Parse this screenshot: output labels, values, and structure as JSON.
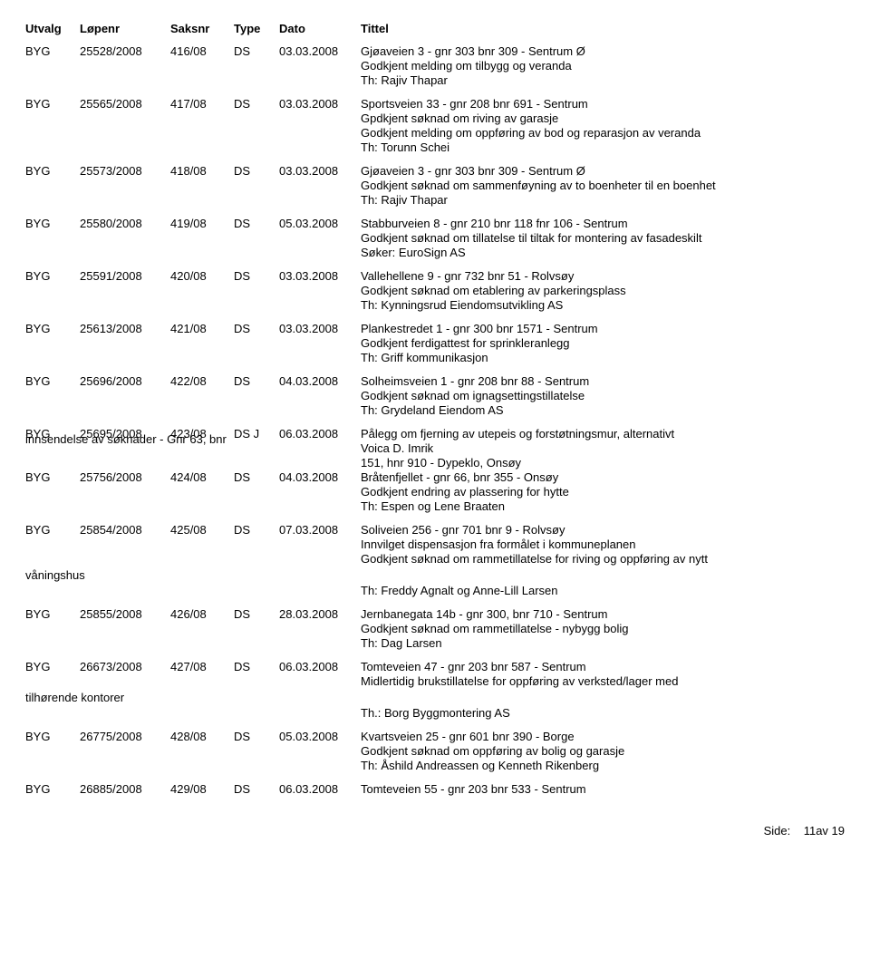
{
  "headers": {
    "utvalg": "Utvalg",
    "lopenr": "Løpenr",
    "saksnr": "Saksnr",
    "type": "Type",
    "dato": "Dato",
    "tittel": "Tittel"
  },
  "rows": [
    {
      "utvalg": "BYG",
      "lopenr": "25528/2008",
      "saksnr": "416/08",
      "type": "DS",
      "dato": "03.03.2008",
      "title": "Gjøaveien 3 - gnr 303 bnr 309 - Sentrum Ø",
      "subs": [
        "Godkjent melding om tilbygg og veranda",
        "Th: Rajiv Thapar"
      ]
    },
    {
      "utvalg": "BYG",
      "lopenr": "25565/2008",
      "saksnr": "417/08",
      "type": "DS",
      "dato": "03.03.2008",
      "title": "Sportsveien 33 - gnr 208 bnr 691 - Sentrum",
      "subs": [
        "Gpdkjent søknad om riving av garasje",
        "Godkjent melding om oppføring av bod og reparasjon av veranda",
        "Th: Torunn Schei"
      ]
    },
    {
      "utvalg": "BYG",
      "lopenr": "25573/2008",
      "saksnr": "418/08",
      "type": "DS",
      "dato": "03.03.2008",
      "title": "Gjøaveien 3 - gnr 303 bnr 309 -  Sentrum Ø",
      "subs": [
        "Godkjent søknad om sammenføyning av to boenheter til en boenhet",
        "Th: Rajiv Thapar"
      ]
    },
    {
      "utvalg": "BYG",
      "lopenr": "25580/2008",
      "saksnr": "419/08",
      "type": "DS",
      "dato": "05.03.2008",
      "title": "Stabburveien 8 - gnr 210 bnr 118 fnr 106 - Sentrum",
      "subs": [
        "Godkjent søknad om tillatelse til tiltak for montering av fasadeskilt",
        "Søker: EuroSign AS"
      ]
    },
    {
      "utvalg": "BYG",
      "lopenr": "25591/2008",
      "saksnr": "420/08",
      "type": "DS",
      "dato": "03.03.2008",
      "title": "Vallehellene 9 - gnr 732 bnr 51 -  Rolvsøy",
      "subs": [
        "Godkjent søknad om etablering av parkeringsplass",
        "Th: Kynningsrud Eiendomsutvikling AS"
      ]
    },
    {
      "utvalg": "BYG",
      "lopenr": "25613/2008",
      "saksnr": "421/08",
      "type": "DS",
      "dato": "03.03.2008",
      "title": "Plankestredet 1 - gnr 300 bnr 1571 - Sentrum",
      "subs": [
        "Godkjent ferdigattest for sprinkleranlegg",
        "Th: Griff kommunikasjon"
      ]
    },
    {
      "utvalg": "BYG",
      "lopenr": "25696/2008",
      "saksnr": "422/08",
      "type": "DS",
      "dato": "04.03.2008",
      "title": "Solheimsveien 1 - gnr 208 bnr 88 - Sentrum",
      "subs": [
        "Godkjent søknad om ignagsettingstillatelse",
        "Th: Grydeland Eiendom AS"
      ]
    },
    {
      "utvalg": "BYG",
      "lopenr": "25695/2008",
      "saksnr": "423/08",
      "type": "DS J",
      "dato": "06.03.2008",
      "title": "Pålegg om fjerning av utepeis og forstøtningsmur, alternativt",
      "subs": [
        "Voica D. Imrik",
        "151, hnr 910 - Dypeklo, Onsøy"
      ],
      "left_note": "innsendelse av søknader - Gnr 63, bnr"
    },
    {
      "utvalg": "BYG",
      "lopenr": "25756/2008",
      "saksnr": "424/08",
      "type": "DS",
      "dato": "04.03.2008",
      "title": "Bråtenfjellet - gnr 66, bnr 355 - Onsøy",
      "subs": [
        "Godkjent endring av plassering for hytte",
        "Th: Espen og Lene Braaten"
      ]
    },
    {
      "utvalg": "BYG",
      "lopenr": "25854/2008",
      "saksnr": "425/08",
      "type": "DS",
      "dato": "07.03.2008",
      "title": "Soliveien 256 - gnr 701 bnr 9 - Rolvsøy",
      "subs": [
        "Innvilget dispensasjon fra formålet i kommuneplanen",
        "Godkjent søknad om rammetillatelse for riving og oppføring av nytt"
      ],
      "left_note_after": "våningshus",
      "subs_after": [
        "Th: Freddy Agnalt og Anne-Lill Larsen"
      ]
    },
    {
      "utvalg": "BYG",
      "lopenr": "25855/2008",
      "saksnr": "426/08",
      "type": "DS",
      "dato": "28.03.2008",
      "title": "Jernbanegata 14b - gnr 300, bnr 710 - Sentrum",
      "subs": [
        "Godkjent søknad om rammetillatelse - nybygg bolig",
        "Th: Dag Larsen"
      ]
    },
    {
      "utvalg": "BYG",
      "lopenr": "26673/2008",
      "saksnr": "427/08",
      "type": "DS",
      "dato": "06.03.2008",
      "title": "Tomteveien 47 - gnr 203 bnr 587 - Sentrum",
      "subs": [
        "Midlertidig brukstillatelse for oppføring av verksted/lager med"
      ],
      "left_note_after": "tilhørende kontorer",
      "subs_after": [
        "Th.: Borg Byggmontering AS"
      ]
    },
    {
      "utvalg": "BYG",
      "lopenr": "26775/2008",
      "saksnr": "428/08",
      "type": "DS",
      "dato": "05.03.2008",
      "title": "Kvartsveien 25 - gnr 601 bnr 390 -  Borge",
      "subs": [
        "Godkjent søknad om oppføring av bolig og garasje",
        "Th: Åshild Andreassen og Kenneth Rikenberg"
      ]
    },
    {
      "utvalg": "BYG",
      "lopenr": "26885/2008",
      "saksnr": "429/08",
      "type": "DS",
      "dato": "06.03.2008",
      "title": "Tomteveien 55 - gnr 203 bnr 533 - Sentrum",
      "subs": []
    }
  ],
  "footer": {
    "label": "Side:",
    "page": "11av 19"
  }
}
